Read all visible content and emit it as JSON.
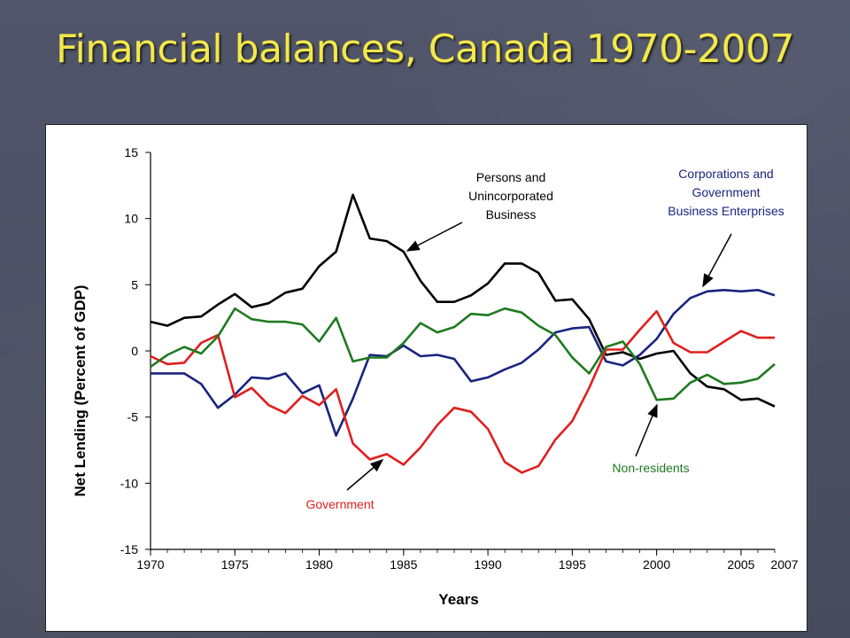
{
  "slide": {
    "title": "Financial balances, Canada 1970-2007"
  },
  "colors": {
    "background": "#4b5061",
    "title": "#f2e84a",
    "persons": "#000000",
    "corporations": "#1a237e",
    "government": "#e01f1f",
    "non_residents": "#1f7a1f"
  },
  "chart_data": {
    "type": "line",
    "title": "",
    "xlabel": "Years",
    "ylabel": "Net Lending (Percent of GDP)",
    "xlim": [
      1970,
      2007
    ],
    "ylim": [
      -15,
      15
    ],
    "grid": false,
    "x_ticks": [
      1970,
      1975,
      1980,
      1985,
      1990,
      1995,
      2000,
      2005
    ],
    "x_tick_labels": [
      "1970",
      "1975",
      "1980",
      "1985",
      "1990",
      "1995",
      "2000",
      "2005"
    ],
    "x_end_label": "2007",
    "y_ticks": [
      15,
      10,
      5,
      0,
      -5,
      -10,
      -15
    ],
    "y_tick_labels": [
      "15",
      "10",
      "5",
      "0",
      "-5",
      "-10",
      "-15"
    ],
    "x": [
      1970,
      1971,
      1972,
      1973,
      1974,
      1975,
      1976,
      1977,
      1978,
      1979,
      1980,
      1981,
      1982,
      1983,
      1984,
      1985,
      1986,
      1987,
      1988,
      1989,
      1990,
      1991,
      1992,
      1993,
      1994,
      1995,
      1996,
      1997,
      1998,
      1999,
      2000,
      2001,
      2002,
      2003,
      2004,
      2005,
      2006,
      2007
    ],
    "series": [
      {
        "name": "Persons and Unincorporated Business",
        "color": "#000000",
        "values": [
          2.2,
          1.9,
          2.5,
          2.6,
          3.5,
          4.3,
          3.3,
          3.6,
          4.4,
          4.7,
          6.4,
          7.5,
          11.8,
          8.5,
          8.3,
          7.5,
          5.3,
          3.7,
          3.7,
          4.2,
          5.1,
          6.6,
          6.6,
          5.9,
          3.8,
          3.9,
          2.4,
          -0.3,
          -0.1,
          -0.6,
          -0.2,
          0.0,
          -1.7,
          -2.7,
          -2.9,
          -3.7,
          -3.6,
          -4.2
        ]
      },
      {
        "name": "Corporations and Government Business Enterprises",
        "color": "#1a237e",
        "values": [
          -1.7,
          -1.7,
          -1.7,
          -2.5,
          -4.3,
          -3.3,
          -2.0,
          -2.1,
          -1.7,
          -3.2,
          -2.6,
          -6.4,
          -3.6,
          -0.3,
          -0.4,
          0.4,
          -0.4,
          -0.3,
          -0.6,
          -2.3,
          -2.0,
          -1.4,
          -0.9,
          0.1,
          1.4,
          1.7,
          1.8,
          -0.8,
          -1.1,
          -0.3,
          0.9,
          2.8,
          4.0,
          4.5,
          4.6,
          4.5,
          4.6,
          4.2
        ]
      },
      {
        "name": "Government",
        "color": "#e01f1f",
        "values": [
          -0.4,
          -1.0,
          -0.9,
          0.6,
          1.2,
          -3.5,
          -2.8,
          -4.1,
          -4.7,
          -3.4,
          -4.1,
          -2.9,
          -7.0,
          -8.2,
          -7.8,
          -8.6,
          -7.3,
          -5.6,
          -4.3,
          -4.6,
          -5.9,
          -8.4,
          -9.2,
          -8.7,
          -6.7,
          -5.3,
          -2.8,
          0.1,
          0.1,
          1.6,
          3.0,
          0.6,
          -0.1,
          -0.1,
          0.7,
          1.5,
          1.0,
          1.0
        ]
      },
      {
        "name": "Non-residents",
        "color": "#1f7a1f",
        "values": [
          -1.2,
          -0.3,
          0.3,
          -0.2,
          1.1,
          3.2,
          2.4,
          2.2,
          2.2,
          2.0,
          0.7,
          2.5,
          -0.8,
          -0.5,
          -0.5,
          0.6,
          2.1,
          1.4,
          1.8,
          2.8,
          2.7,
          3.2,
          2.9,
          1.9,
          1.2,
          -0.5,
          -1.7,
          0.3,
          0.7,
          -1.0,
          -3.7,
          -3.6,
          -2.4,
          -1.8,
          -2.5,
          -2.4,
          -2.1,
          -1.0
        ]
      }
    ],
    "annotations": [
      {
        "series": "Persons and Unincorporated Business",
        "lines": [
          "Persons and",
          "Unincorporated",
          "Business"
        ],
        "color": "#000000"
      },
      {
        "series": "Corporations and Government Business Enterprises",
        "lines": [
          "Corporations and",
          "Government",
          "Business Enterprises"
        ],
        "color": "#1a237e"
      },
      {
        "series": "Government",
        "lines": [
          "Government"
        ],
        "color": "#e01f1f"
      },
      {
        "series": "Non-residents",
        "lines": [
          "Non-residents"
        ],
        "color": "#1f7a1f"
      }
    ]
  }
}
